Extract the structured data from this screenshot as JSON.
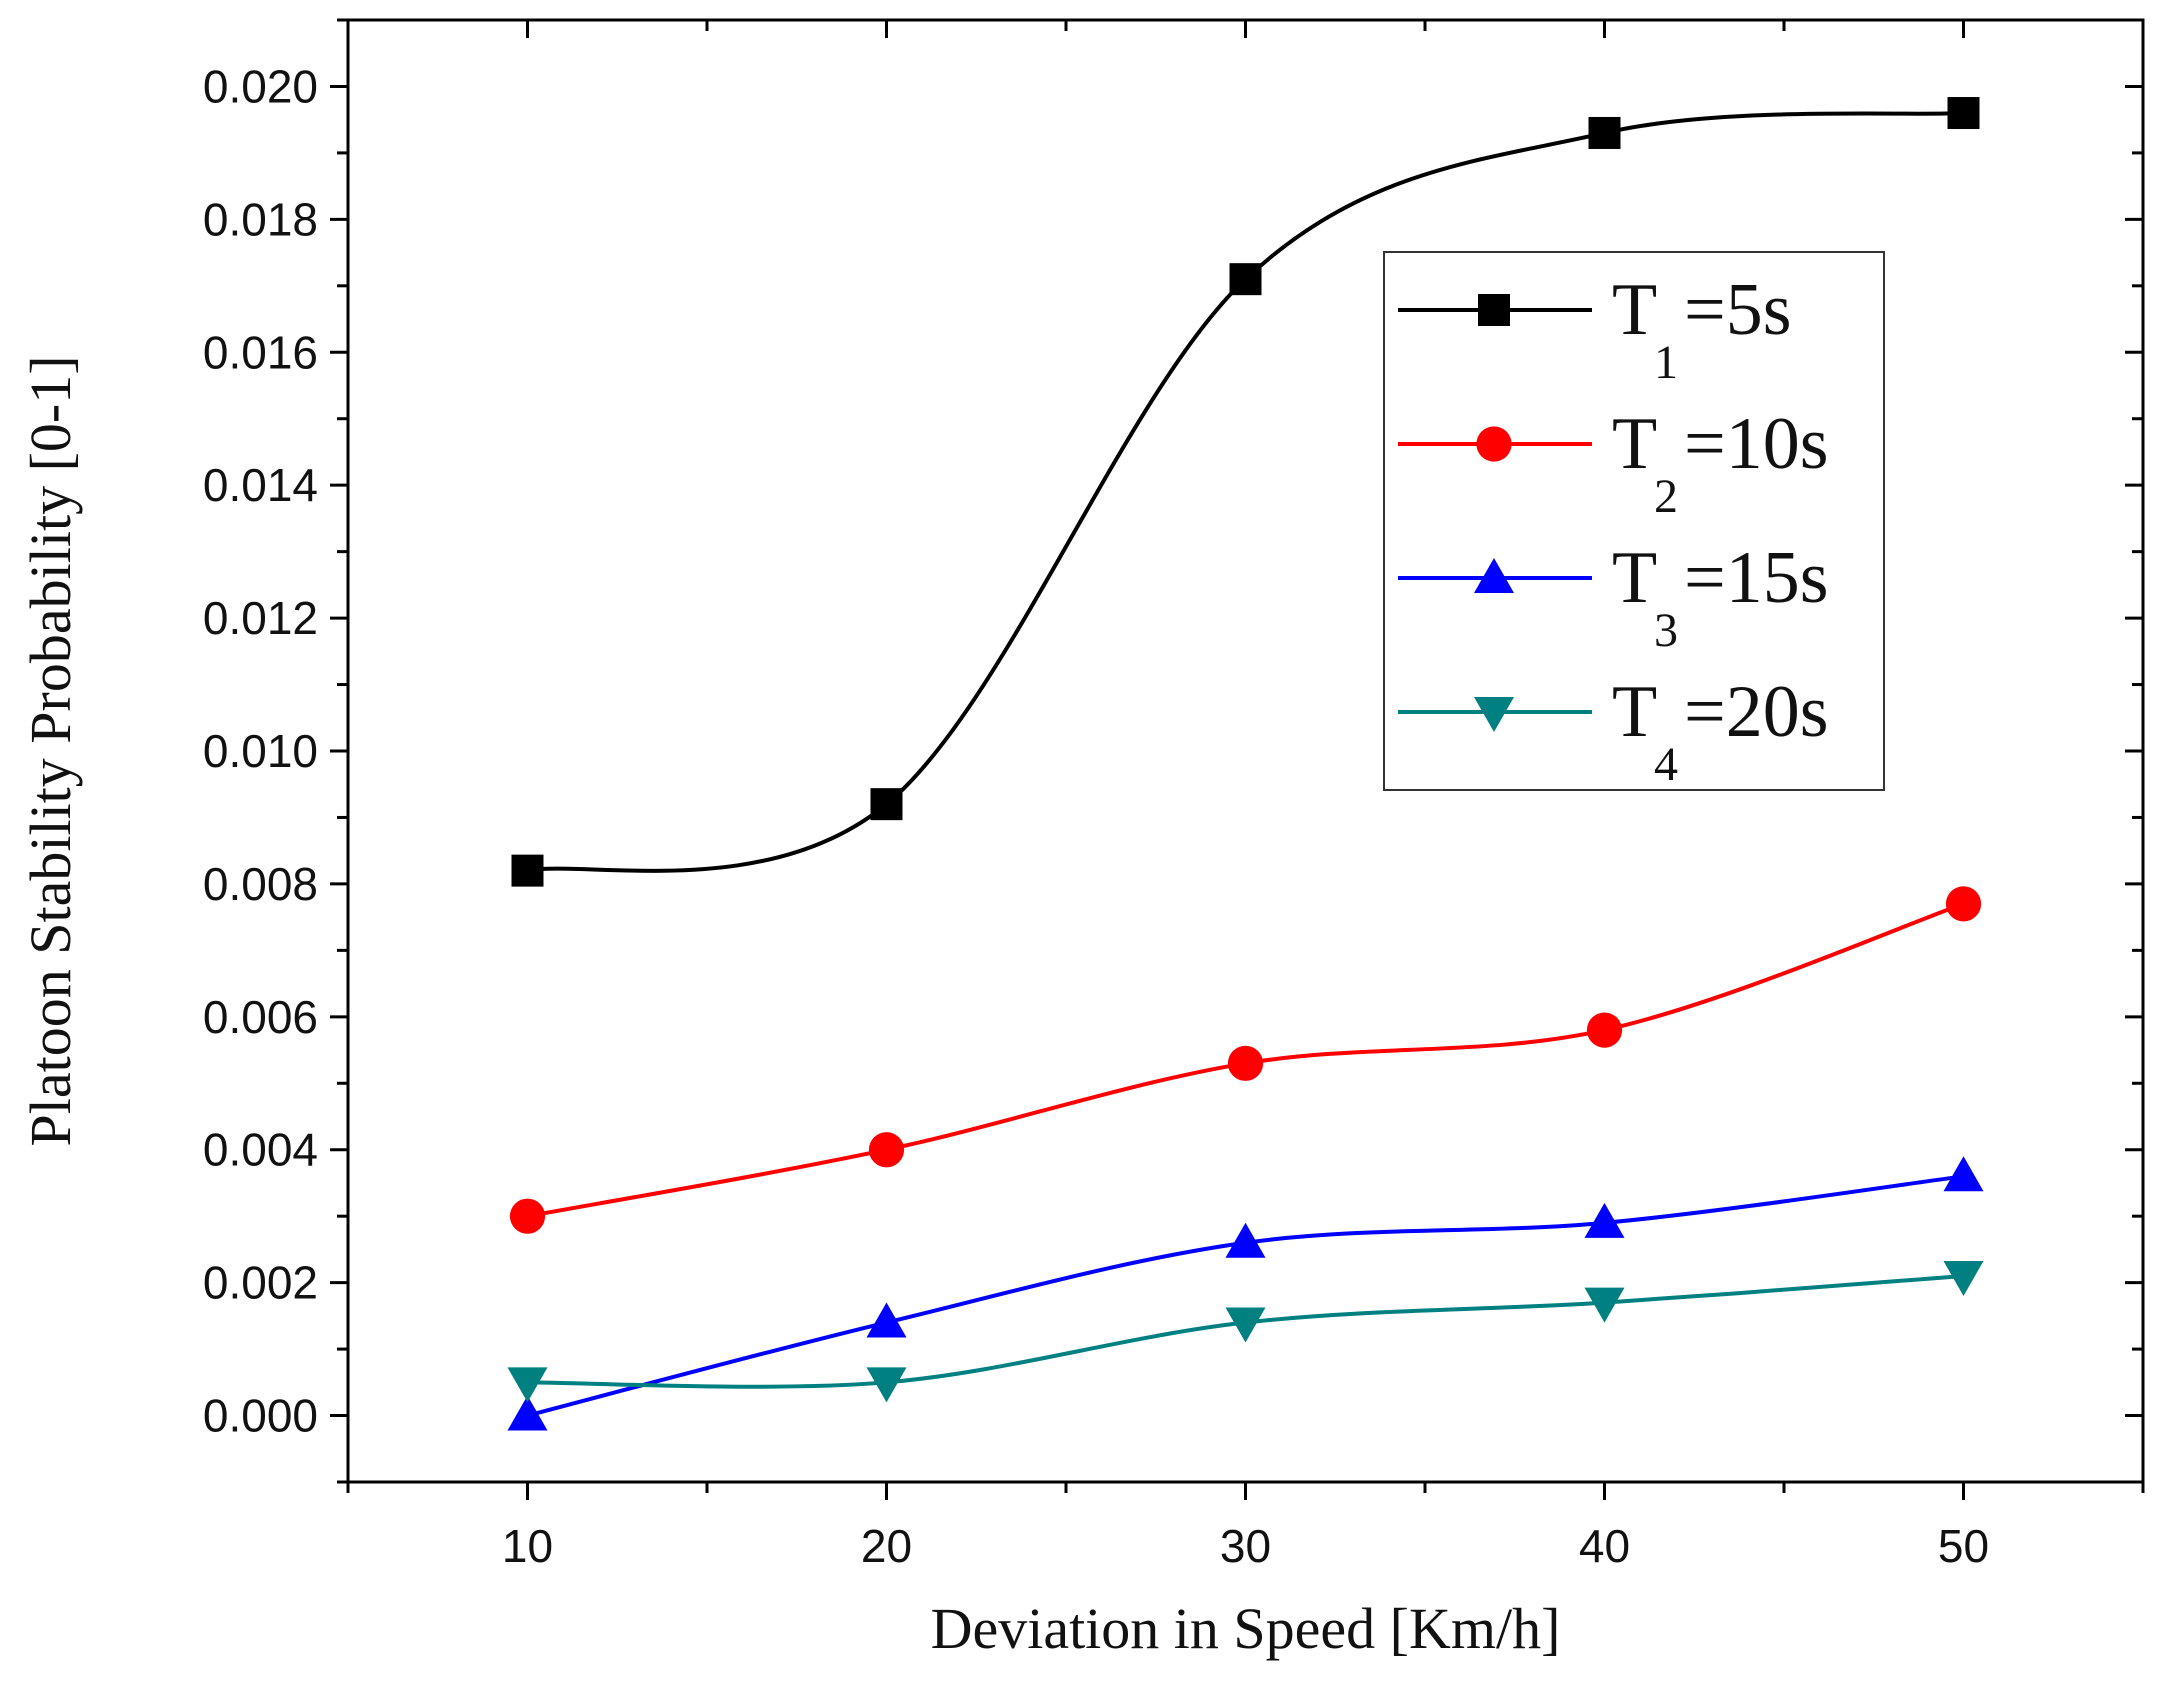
{
  "chart_data": {
    "type": "line",
    "xlabel": "Deviation in Speed [Km/h]",
    "ylabel": "Platoon Stability Probability [0-1]",
    "x": [
      10,
      20,
      30,
      40,
      50
    ],
    "xticks": [
      10,
      20,
      30,
      40,
      50
    ],
    "xlim": [
      5,
      55
    ],
    "ylim": [
      -0.001,
      0.021
    ],
    "yticks": [
      0.0,
      0.002,
      0.004,
      0.006,
      0.008,
      0.01,
      0.012,
      0.014,
      0.016,
      0.018,
      0.02
    ],
    "ytick_labels": [
      "0.000",
      "0.002",
      "0.004",
      "0.006",
      "0.008",
      "0.010",
      "0.012",
      "0.014",
      "0.016",
      "0.018",
      "0.020"
    ],
    "legend_position": "upper-right",
    "grid": false,
    "series": [
      {
        "name": "T1=5s",
        "label_main": "T",
        "label_sub": "1",
        "label_rest": "=5s",
        "color": "#000000",
        "marker": "square",
        "values": [
          0.0082,
          0.0092,
          0.0171,
          0.0193,
          0.0196
        ]
      },
      {
        "name": "T2=10s",
        "label_main": "T",
        "label_sub": "2",
        "label_rest": "=10s",
        "color": "#ff0000",
        "marker": "circle",
        "values": [
          0.003,
          0.004,
          0.0053,
          0.0058,
          0.0077
        ]
      },
      {
        "name": "T3=15s",
        "label_main": "T",
        "label_sub": "3",
        "label_rest": "=15s",
        "color": "#0000ff",
        "marker": "triangle-up",
        "values": [
          0.0,
          0.0014,
          0.0026,
          0.0029,
          0.0036
        ]
      },
      {
        "name": "T4=20s",
        "label_main": "T",
        "label_sub": "4",
        "label_rest": "=20s",
        "color": "#008080",
        "marker": "triangle-down",
        "values": [
          0.0005,
          0.0005,
          0.0014,
          0.0017,
          0.0021
        ]
      }
    ]
  }
}
